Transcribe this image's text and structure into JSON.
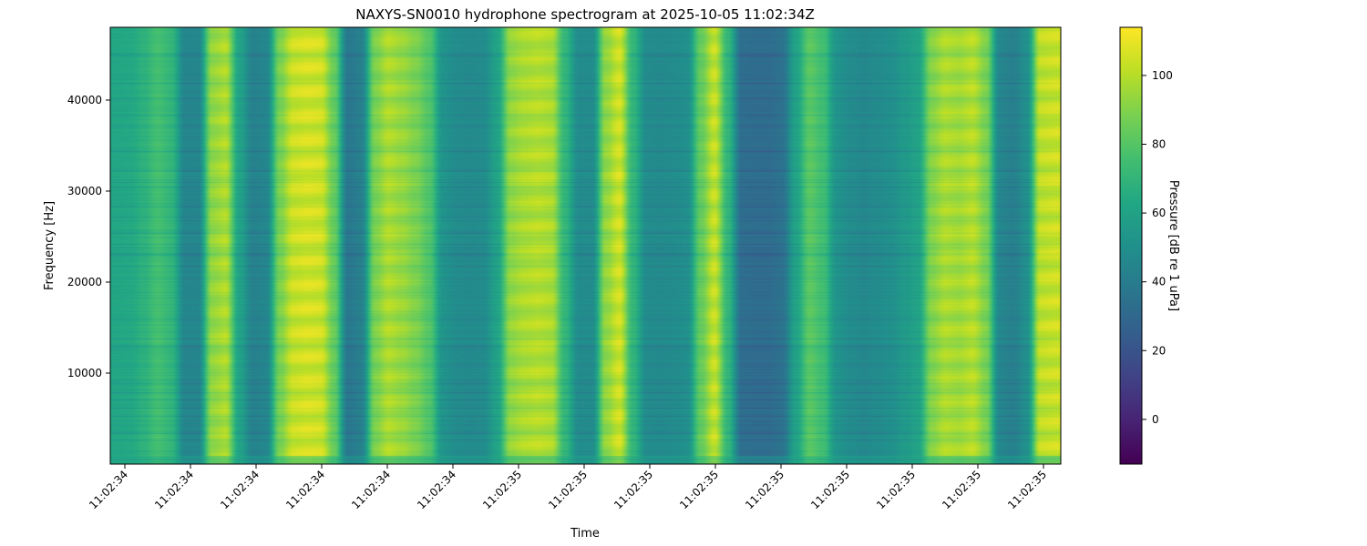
{
  "chart_data": {
    "type": "heatmap",
    "title": "NAXYS-SN0010 hydrophone spectrogram at 2025-10-05 11:02:34Z",
    "xlabel": "Time",
    "ylabel": "Frequency [Hz]",
    "colorbar_label": "Pressure [dB re 1 uPa]",
    "colormap": "viridis",
    "x_tick_labels": [
      "11:02:34",
      "11:02:34",
      "11:02:34",
      "11:02:34",
      "11:02:34",
      "11:02:34",
      "11:02:35",
      "11:02:35",
      "11:02:35",
      "11:02:35",
      "11:02:35",
      "11:02:35",
      "11:02:35",
      "11:02:35",
      "11:02:35"
    ],
    "y_ticks": [
      10000,
      20000,
      30000,
      40000
    ],
    "ylim": [
      0,
      48000
    ],
    "color_ticks": [
      0,
      20,
      40,
      60,
      80,
      100
    ],
    "clim": [
      -13,
      114
    ],
    "grid": false,
    "time_bin_levels_db": [
      62,
      63,
      68,
      76,
      70,
      45,
      45,
      95,
      100,
      60,
      43,
      45,
      90,
      106,
      108,
      107,
      85,
      38,
      42,
      90,
      100,
      96,
      90,
      80,
      52,
      48,
      47,
      48,
      60,
      95,
      100,
      102,
      100,
      70,
      48,
      48,
      95,
      107,
      70,
      48,
      47,
      48,
      50,
      85,
      105,
      70,
      33,
      32,
      32,
      35,
      60,
      82,
      75,
      52,
      48,
      46,
      48,
      50,
      55,
      60,
      92,
      100,
      98,
      102,
      90,
      45,
      42,
      50,
      104,
      106
    ]
  }
}
